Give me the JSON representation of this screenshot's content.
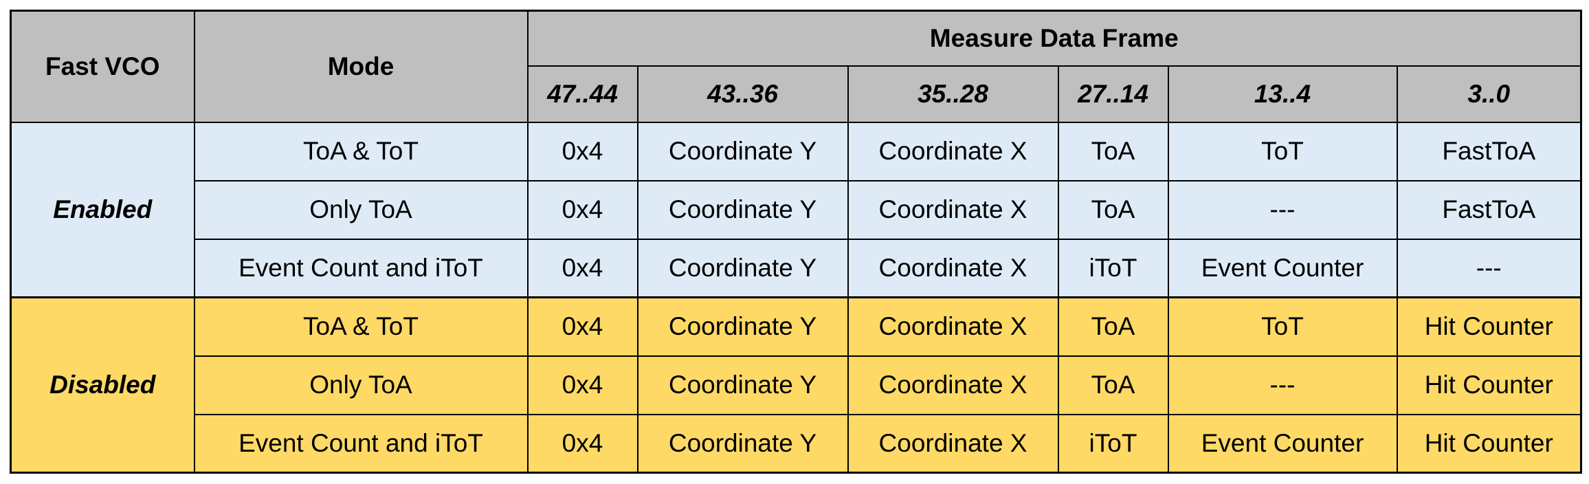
{
  "headers": {
    "fast_vco": "Fast VCO",
    "mode": "Mode",
    "measure_data_frame": "Measure Data Frame",
    "bits": [
      "47..44",
      "43..36",
      "35..28",
      "27..14",
      "13..4",
      "3..0"
    ]
  },
  "groups": [
    {
      "label": "Enabled",
      "color": "#deebf7",
      "rows": [
        {
          "mode": "ToA & ToT",
          "cells": [
            "0x4",
            "Coordinate Y",
            "Coordinate X",
            "ToA",
            "ToT",
            "FastToA"
          ]
        },
        {
          "mode": "Only ToA",
          "cells": [
            "0x4",
            "Coordinate Y",
            "Coordinate X",
            "ToA",
            "---",
            "FastToA"
          ]
        },
        {
          "mode": "Event Count and iToT",
          "cells": [
            "0x4",
            "Coordinate Y",
            "Coordinate X",
            "iToT",
            "Event Counter",
            "---"
          ]
        }
      ]
    },
    {
      "label": "Disabled",
      "color": "#ffd966",
      "rows": [
        {
          "mode": "ToA & ToT",
          "cells": [
            "0x4",
            "Coordinate Y",
            "Coordinate X",
            "ToA",
            "ToT",
            "Hit Counter"
          ]
        },
        {
          "mode": "Only ToA",
          "cells": [
            "0x4",
            "Coordinate Y",
            "Coordinate X",
            "ToA",
            "---",
            "Hit Counter"
          ]
        },
        {
          "mode": "Event Count and iToT",
          "cells": [
            "0x4",
            "Coordinate Y",
            "Coordinate X",
            "iToT",
            "Event Counter",
            "Hit Counter"
          ]
        }
      ]
    }
  ]
}
